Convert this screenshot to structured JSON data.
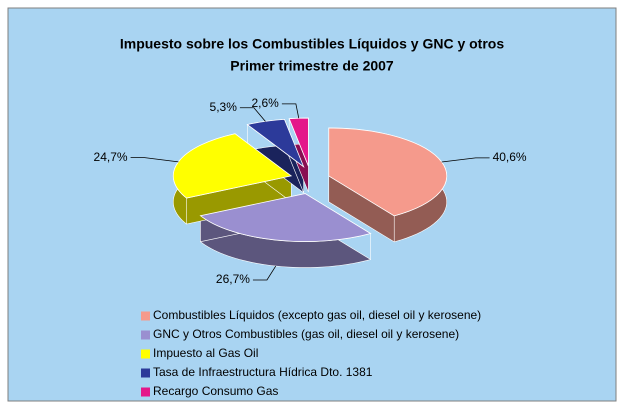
{
  "chart_data": {
    "type": "pie",
    "title": "Impuesto sobre los Combustibles Líquidos y GNC y otros",
    "subtitle": "Primer trimestre de 2007",
    "categories": [
      "Combustibles Líquidos (excepto gas oil, diesel oil y kerosene)",
      "GNC y Otros Combustibles (gas oil, diesel oil y kerosene)",
      "Impuesto al Gas Oil",
      "Tasa de Infraestructura Hídrica Dto. 1381",
      "Recargo Consumo Gas"
    ],
    "values": [
      40.6,
      26.7,
      24.7,
      5.3,
      2.6
    ],
    "value_labels": [
      "40,6%",
      "26,7%",
      "24,7%",
      "5,3%",
      "2,6%"
    ],
    "colors": [
      "#f59a8c",
      "#9a8fd0",
      "#ffff00",
      "#2c3a9a",
      "#e4178a"
    ],
    "legend": "bottom"
  }
}
